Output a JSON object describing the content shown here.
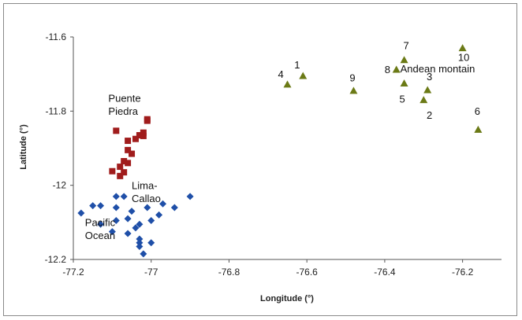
{
  "chart_data": {
    "type": "scatter",
    "xlabel": "Longitude (°)",
    "ylabel": "Latitude (°)",
    "xlim": [
      -77.2,
      -76.1
    ],
    "ylim": [
      -12.2,
      -11.6
    ],
    "x_ticks": [
      "-77.2",
      "-77",
      "-76.8",
      "-76.6",
      "-76.4",
      "-76.2"
    ],
    "x_tick_values": [
      -77.2,
      -77.0,
      -76.8,
      -76.6,
      -76.4,
      -76.2
    ],
    "y_ticks": [
      "-11.6",
      "-11.8",
      "-12",
      "-12.2"
    ],
    "y_tick_values": [
      -11.6,
      -11.8,
      -12.0,
      -12.2
    ],
    "grid": false,
    "series": [
      {
        "marker": "square",
        "color": "#a01c1c",
        "points": [
          [
            -77.01,
            -11.822
          ],
          [
            -77.01,
            -11.826
          ],
          [
            -77.09,
            -11.853
          ],
          [
            -77.02,
            -11.858
          ],
          [
            -77.03,
            -11.865
          ],
          [
            -77.02,
            -11.867
          ],
          [
            -77.04,
            -11.875
          ],
          [
            -77.06,
            -11.88
          ],
          [
            -77.06,
            -11.905
          ],
          [
            -77.05,
            -11.915
          ],
          [
            -77.07,
            -11.935
          ],
          [
            -77.06,
            -11.94
          ],
          [
            -77.08,
            -11.95
          ],
          [
            -77.1,
            -11.962
          ],
          [
            -77.07,
            -11.965
          ],
          [
            -77.08,
            -11.975
          ]
        ]
      },
      {
        "marker": "diamond",
        "color": "#1f4fa8",
        "points": [
          [
            -77.09,
            -12.03
          ],
          [
            -77.07,
            -12.03
          ],
          [
            -76.97,
            -12.05
          ],
          [
            -76.9,
            -12.03
          ],
          [
            -77.15,
            -12.055
          ],
          [
            -77.13,
            -12.055
          ],
          [
            -77.09,
            -12.06
          ],
          [
            -77.01,
            -12.06
          ],
          [
            -76.94,
            -12.06
          ],
          [
            -77.05,
            -12.07
          ],
          [
            -77.18,
            -12.075
          ],
          [
            -76.98,
            -12.08
          ],
          [
            -77.06,
            -12.09
          ],
          [
            -77.09,
            -12.095
          ],
          [
            -77.0,
            -12.095
          ],
          [
            -77.13,
            -12.105
          ],
          [
            -77.03,
            -12.105
          ],
          [
            -77.04,
            -12.115
          ],
          [
            -77.1,
            -12.125
          ],
          [
            -77.06,
            -12.13
          ],
          [
            -77.03,
            -12.145
          ],
          [
            -77.03,
            -12.155
          ],
          [
            -77.0,
            -12.155
          ],
          [
            -77.03,
            -12.165
          ],
          [
            -77.02,
            -12.185
          ]
        ]
      },
      {
        "marker": "triangle",
        "color": "#6b7a16",
        "points": [
          [
            -76.61,
            -11.705
          ],
          [
            -76.65,
            -11.728
          ],
          [
            -76.48,
            -11.745
          ],
          [
            -76.37,
            -11.688
          ],
          [
            -76.35,
            -11.662
          ],
          [
            -76.35,
            -11.725
          ],
          [
            -76.29,
            -11.743
          ],
          [
            -76.3,
            -11.77
          ],
          [
            -76.2,
            -11.63
          ],
          [
            -76.16,
            -11.85
          ]
        ]
      }
    ],
    "annotations": [
      {
        "text": "Puente",
        "x": -77.11,
        "y": -11.775,
        "anchor": "start"
      },
      {
        "text": "Piedra",
        "x": -77.11,
        "y": -11.81,
        "anchor": "start"
      },
      {
        "text": "Lima-",
        "x": -77.05,
        "y": -12.01,
        "anchor": "start"
      },
      {
        "text": "Callao",
        "x": -77.05,
        "y": -12.045,
        "anchor": "start"
      },
      {
        "text": "Pacific",
        "x": -77.17,
        "y": -12.11,
        "anchor": "start"
      },
      {
        "text": "Ocean",
        "x": -77.17,
        "y": -12.145,
        "anchor": "start"
      },
      {
        "text": "Andean montain",
        "x": -76.36,
        "y": -11.695,
        "anchor": "start"
      },
      {
        "text": "1",
        "x": -76.625,
        "y": -11.685,
        "anchor": "middle"
      },
      {
        "text": "2",
        "x": -76.285,
        "y": -11.82,
        "anchor": "middle"
      },
      {
        "text": "3",
        "x": -76.285,
        "y": -11.717,
        "anchor": "middle"
      },
      {
        "text": "4",
        "x": -76.667,
        "y": -11.71,
        "anchor": "middle"
      },
      {
        "text": "5",
        "x": -76.355,
        "y": -11.777,
        "anchor": "middle"
      },
      {
        "text": "6",
        "x": -76.162,
        "y": -11.81,
        "anchor": "middle"
      },
      {
        "text": "7",
        "x": -76.345,
        "y": -11.633,
        "anchor": "middle"
      },
      {
        "text": "8",
        "x": -76.393,
        "y": -11.698,
        "anchor": "middle"
      },
      {
        "text": "9",
        "x": -76.483,
        "y": -11.72,
        "anchor": "middle"
      },
      {
        "text": "10",
        "x": -76.197,
        "y": -11.665,
        "anchor": "middle"
      }
    ]
  }
}
